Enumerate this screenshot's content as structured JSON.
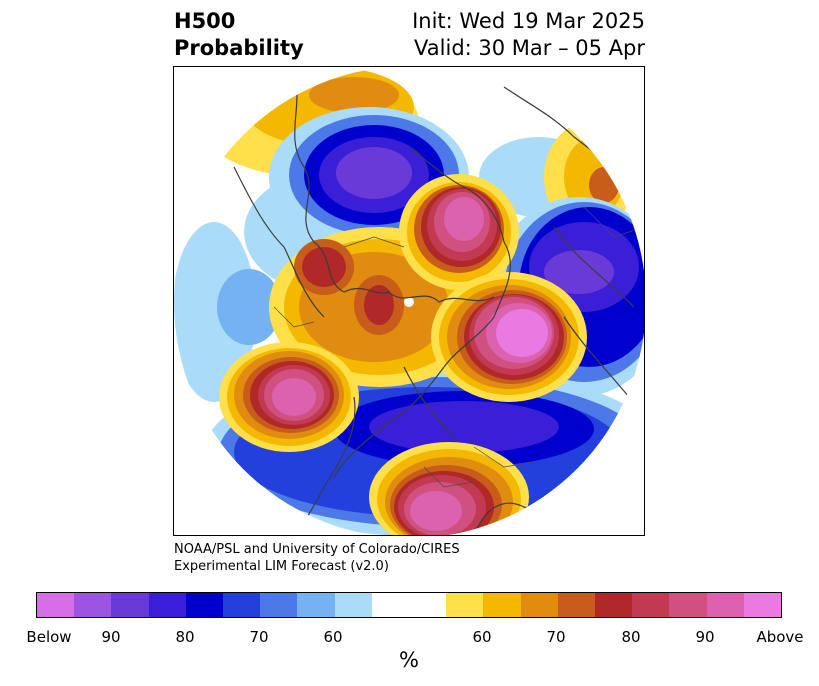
{
  "title": {
    "left_line1": "H500",
    "left_line2": "Probability",
    "right_line1": "Init: Wed 19 Mar 2025",
    "right_line2": "Valid: 30 Mar – 05 Apr"
  },
  "credit": {
    "line1": "NOAA/PSL and University of Colorado/CIRES",
    "line2": "Experimental LIM Forecast (v2.0)"
  },
  "colorbar": {
    "colors": [
      "#d66fe6",
      "#9b55e0",
      "#6a3ad9",
      "#3a1fd6",
      "#0000cc",
      "#2440dc",
      "#4d78e8",
      "#74b2f2",
      "#aadcfa",
      "#ffffff",
      "#ffe04a",
      "#f5b800",
      "#e08c10",
      "#c85c1a",
      "#b02828",
      "#c23a52",
      "#d05080",
      "#dc62b0",
      "#e87ae0"
    ],
    "ticks": [
      "Below",
      "90",
      "80",
      "70",
      "60",
      "60",
      "70",
      "80",
      "90",
      "Above"
    ],
    "unit": "%"
  },
  "palette": {
    "below_extreme": "#d66fe6",
    "strong_below": "#3a1fd6",
    "moderate_below": "#2440dc",
    "weak_below": "#74b2f2",
    "slight_below": "#aadcfa",
    "neutral": "#ffffff",
    "slight_above": "#ffe04a",
    "weak_above": "#f5b800",
    "moderate_above": "#e08c10",
    "strong_above": "#c23a52",
    "above_extreme": "#e87ae0",
    "coastline": "#3c3c3c"
  }
}
